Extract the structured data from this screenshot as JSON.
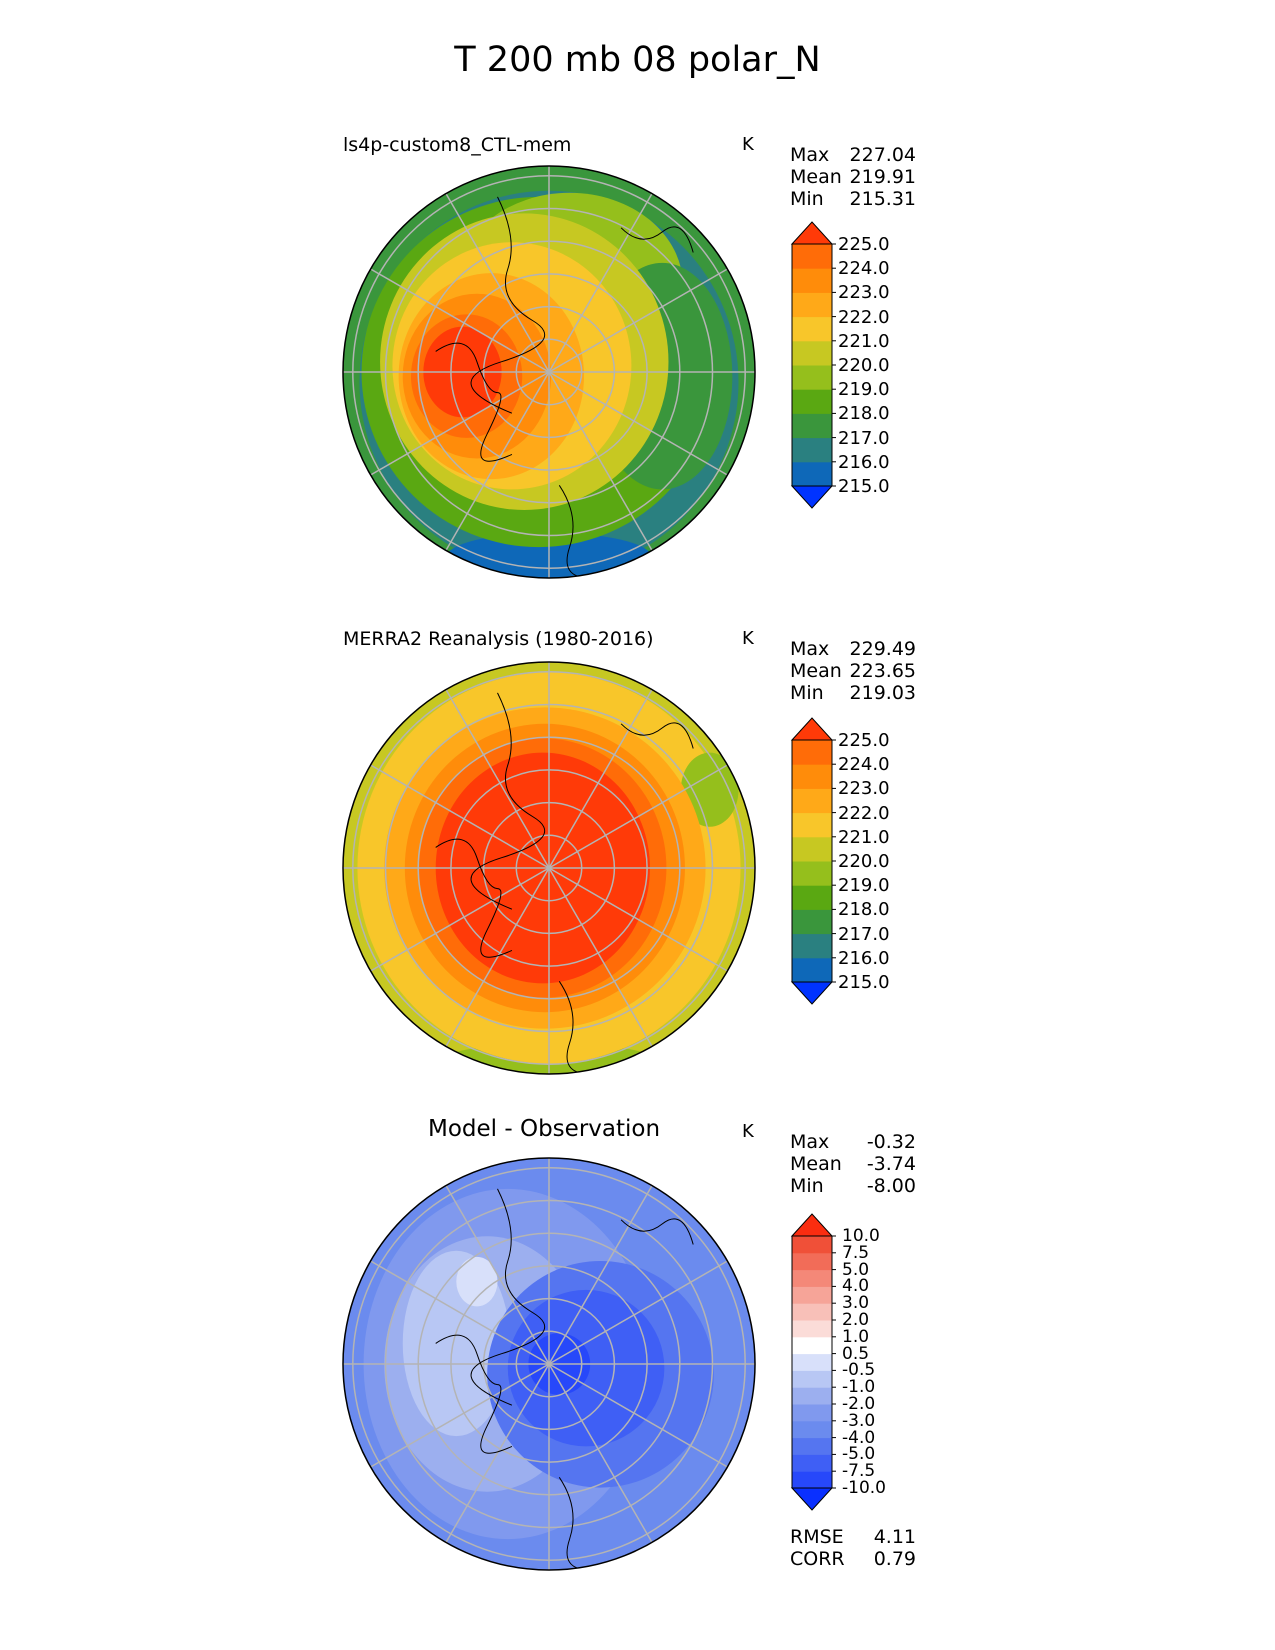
{
  "title": "T 200 mb 08 polar_N",
  "units": "K",
  "colors": {
    "absolute_levels": [
      "#0033ff",
      "#0e68b8",
      "#2a8080",
      "#3a963c",
      "#5aa812",
      "#95bf1c",
      "#c7c822",
      "#f8c62a",
      "#ffa918",
      "#ff8c0a",
      "#ff6c08",
      "#ff3a08"
    ],
    "difference_levels": [
      "#0a30ff",
      "#2748fa",
      "#3f5ff5",
      "#5575f0",
      "#6b8bee",
      "#8099ee",
      "#9cafef",
      "#b8c7f4",
      "#d8e0fa",
      "#ffffff",
      "#fbdcd8",
      "#f8c0b8",
      "#f6a498",
      "#f48878",
      "#f26c58",
      "#f05038",
      "#fa2d10"
    ],
    "frame": "#000000",
    "grid": "#b4b4b4"
  },
  "panels": [
    {
      "title": "ls4p-custom8_CTL-mem",
      "units": "K",
      "stats": [
        {
          "label": "Max",
          "value": "227.04"
        },
        {
          "label": "Mean",
          "value": "219.91"
        },
        {
          "label": "Min",
          "value": "215.31"
        }
      ],
      "colorbar_ticks": [
        "225.0",
        "224.0",
        "223.0",
        "222.0",
        "221.0",
        "220.0",
        "219.0",
        "218.0",
        "217.0",
        "216.0",
        "215.0"
      ]
    },
    {
      "title": "MERRA2 Reanalysis (1980-2016)",
      "units": "K",
      "stats": [
        {
          "label": "Max",
          "value": "229.49"
        },
        {
          "label": "Mean",
          "value": "223.65"
        },
        {
          "label": "Min",
          "value": "219.03"
        }
      ],
      "colorbar_ticks": [
        "225.0",
        "224.0",
        "223.0",
        "222.0",
        "221.0",
        "220.0",
        "219.0",
        "218.0",
        "217.0",
        "216.0",
        "215.0"
      ]
    },
    {
      "title": "Model - Observation",
      "units": "K",
      "stats": [
        {
          "label": "Max",
          "value": "-0.32"
        },
        {
          "label": "Mean",
          "value": "-3.74"
        },
        {
          "label": "Min",
          "value": "-8.00"
        }
      ],
      "colorbar_ticks": [
        "10.0",
        "7.5",
        "5.0",
        "4.0",
        "3.0",
        "2.0",
        "1.0",
        "0.5",
        "-0.5",
        "-1.0",
        "-2.0",
        "-3.0",
        "-4.0",
        "-5.0",
        "-7.5",
        "-10.0"
      ],
      "extra_stats": [
        {
          "label": "RMSE",
          "value": "4.11"
        },
        {
          "label": "CORR",
          "value": "0.79"
        }
      ]
    }
  ],
  "chart_data": [
    {
      "type": "heatmap",
      "title": "ls4p-custom8_CTL-mem",
      "projection": "north polar stereographic",
      "units": "K",
      "levels": [
        215.0,
        216.0,
        217.0,
        218.0,
        219.0,
        220.0,
        221.0,
        222.0,
        223.0,
        224.0,
        225.0
      ],
      "extend": "both",
      "stats": {
        "max": 227.04,
        "mean": 219.91,
        "min": 215.31
      }
    },
    {
      "type": "heatmap",
      "title": "MERRA2 Reanalysis (1980-2016)",
      "projection": "north polar stereographic",
      "units": "K",
      "levels": [
        215.0,
        216.0,
        217.0,
        218.0,
        219.0,
        220.0,
        221.0,
        222.0,
        223.0,
        224.0,
        225.0
      ],
      "extend": "both",
      "stats": {
        "max": 229.49,
        "mean": 223.65,
        "min": 219.03
      }
    },
    {
      "type": "heatmap",
      "title": "Model - Observation",
      "projection": "north polar stereographic",
      "units": "K",
      "levels": [
        -10.0,
        -7.5,
        -5.0,
        -4.0,
        -3.0,
        -2.0,
        -1.0,
        -0.5,
        0.5,
        1.0,
        2.0,
        3.0,
        4.0,
        5.0,
        7.5,
        10.0
      ],
      "extend": "both",
      "stats": {
        "max": -0.32,
        "mean": -3.74,
        "min": -8.0,
        "rmse": 4.11,
        "corr": 0.79
      }
    }
  ]
}
